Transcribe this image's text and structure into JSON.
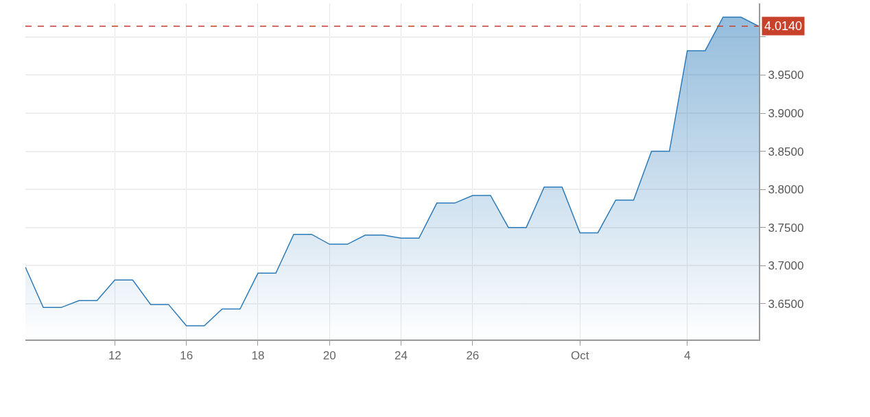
{
  "chart_data": {
    "type": "area",
    "categories": [
      null,
      null,
      null,
      null,
      null,
      "12",
      null,
      null,
      null,
      "16",
      null,
      null,
      null,
      "18",
      null,
      null,
      null,
      "20",
      null,
      null,
      null,
      "24",
      null,
      null,
      null,
      "26",
      null,
      null,
      null,
      null,
      null,
      "Oct",
      null,
      null,
      null,
      null,
      null,
      "4",
      null,
      null,
      null,
      null
    ],
    "series": [
      {
        "color": "#2a7ab9",
        "values": [
          3.698,
          3.645,
          3.645,
          3.654,
          3.654,
          3.681,
          3.681,
          3.649,
          3.649,
          3.621,
          3.621,
          3.643,
          3.643,
          3.69,
          3.69,
          3.741,
          3.741,
          3.728,
          3.728,
          3.74,
          3.74,
          3.736,
          3.736,
          3.782,
          3.782,
          3.792,
          3.792,
          3.75,
          3.75,
          3.803,
          3.803,
          3.743,
          3.743,
          3.786,
          3.786,
          3.85,
          3.85,
          3.982,
          3.982,
          4.026,
          4.026,
          4.014
        ]
      }
    ],
    "ylim": [
      3.603,
      4.044
    ],
    "yticks": [
      {
        "value": 3.65,
        "label": "3.6500"
      },
      {
        "value": 3.7,
        "label": "3.7000"
      },
      {
        "value": 3.75,
        "label": "3.7500"
      },
      {
        "value": 3.8,
        "label": "3.8000"
      },
      {
        "value": 3.85,
        "label": "3.8500"
      },
      {
        "value": 3.9,
        "label": "3.9000"
      },
      {
        "value": 3.95,
        "label": "3.9500"
      },
      {
        "value": 4.0,
        "label": null
      }
    ],
    "ref_lines": [
      {
        "axis": "y",
        "value": 4.014,
        "label": "4.0140",
        "color": "#c8412a",
        "line_style": "dashed"
      }
    ],
    "grid": true,
    "marker": "none",
    "line_style": "solid"
  }
}
